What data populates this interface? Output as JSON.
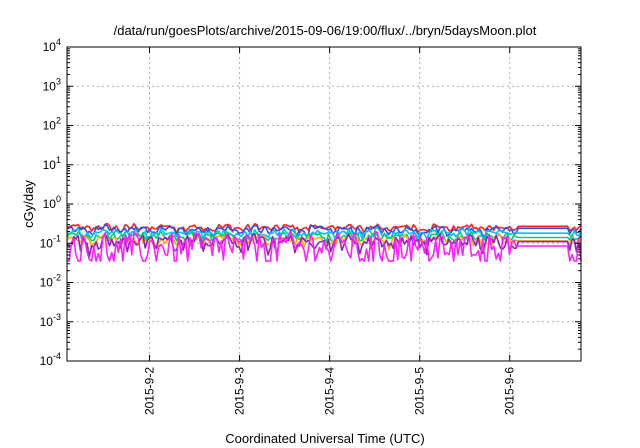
{
  "chart_data": {
    "type": "line",
    "title": "/data/run/goesPlots/archive/2015-09-06/19:00/flux/../bryn/5daysMoon.plot",
    "xlabel": "Coordinated Universal Time (UTC)",
    "ylabel": "cGy/day",
    "yscale": "log",
    "ylim": [
      0.0001,
      10000
    ],
    "xlim": [
      "2015-09-01 02:00",
      "2015-09-06 19:00"
    ],
    "grid": true,
    "x_ticks": [
      "2015-9-2",
      "2015-9-3",
      "2015-9-4",
      "2015-9-5",
      "2015-9-6"
    ],
    "y_ticks": [
      {
        "value": 0.0001,
        "base": "10",
        "exp": "-4"
      },
      {
        "value": 0.001,
        "base": "10",
        "exp": "-3"
      },
      {
        "value": 0.01,
        "base": "10",
        "exp": "-2"
      },
      {
        "value": 0.1,
        "base": "10",
        "exp": "-1"
      },
      {
        "value": 1,
        "base": "10",
        "exp": "0"
      },
      {
        "value": 10,
        "base": "10",
        "exp": "1"
      },
      {
        "value": 100,
        "base": "10",
        "exp": "2"
      },
      {
        "value": 1000,
        "base": "10",
        "exp": "3"
      },
      {
        "value": 10000,
        "base": "10",
        "exp": "4"
      }
    ],
    "series": [
      {
        "color": "#ff2020",
        "base": 0.25,
        "amp": 0.07,
        "noise": 0.04,
        "tail": 0.27
      },
      {
        "color": "#3050e0",
        "base": 0.22,
        "amp": 0.07,
        "noise": 0.04,
        "tail": 0.24
      },
      {
        "color": "#00c0ff",
        "base": 0.18,
        "amp": 0.06,
        "noise": 0.035,
        "tail": 0.18
      },
      {
        "color": "#00d070",
        "base": 0.15,
        "amp": 0.05,
        "noise": 0.03,
        "tail": 0.14
      },
      {
        "color": "#ffb000",
        "base": 0.12,
        "amp": 0.05,
        "noise": 0.03,
        "tail": 0.115
      },
      {
        "color": "#9020c0",
        "base": 0.11,
        "amp": 0.05,
        "noise": 0.04,
        "tail": 0.11
      },
      {
        "color": "#ff20ff",
        "base": 0.085,
        "amp": 0.06,
        "noise": 0.09,
        "tail": 0.085
      }
    ]
  }
}
